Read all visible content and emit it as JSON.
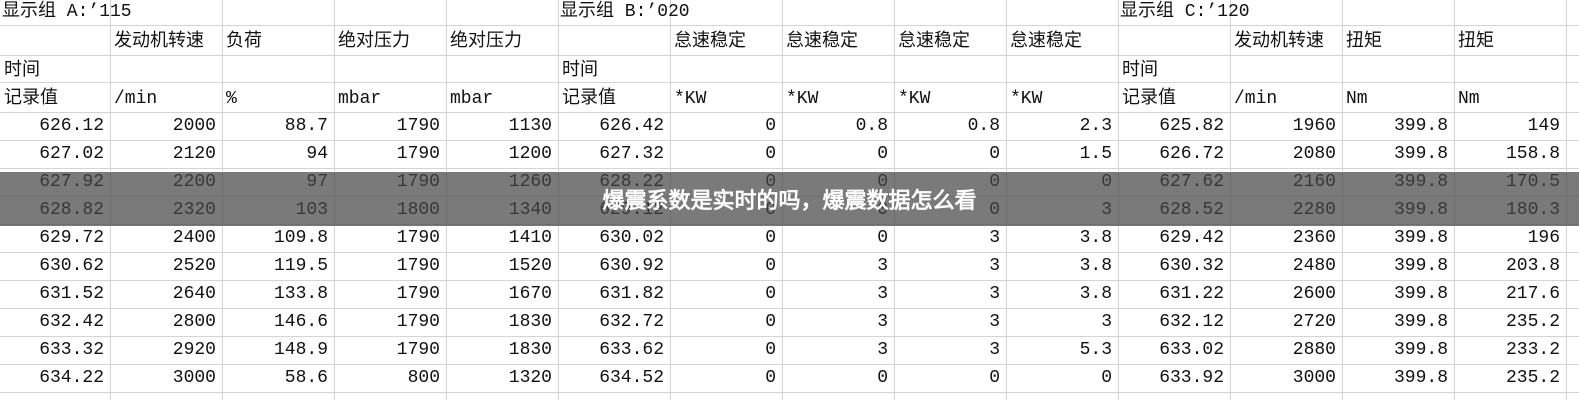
{
  "table": {
    "group_row": [
      [
        "显示组 A:’115",
        0
      ],
      [
        "显示组 B:’020",
        5
      ],
      [
        "显示组 C:’120",
        10
      ]
    ],
    "header_rows": [
      [
        null,
        "发动机转速",
        "负荷",
        "绝对压力",
        "绝对压力",
        null,
        "怠速稳定",
        "怠速稳定",
        "怠速稳定",
        "怠速稳定",
        null,
        "发动机转速",
        "扭矩",
        "扭矩"
      ],
      [
        "时间",
        null,
        null,
        null,
        null,
        "时间",
        null,
        null,
        null,
        null,
        "时间",
        null,
        null,
        null
      ],
      [
        "记录值",
        "/min",
        "%",
        "mbar",
        "mbar",
        "记录值",
        "*KW",
        "*KW",
        "*KW",
        "*KW",
        "记录值",
        "/min",
        "Nm",
        "Nm"
      ]
    ],
    "rows": [
      [
        626.12,
        2000,
        88.7,
        1790,
        1130,
        626.42,
        0,
        0.8,
        0.8,
        2.3,
        625.82,
        1960,
        399.8,
        149
      ],
      [
        627.02,
        2120,
        94,
        1790,
        1200,
        627.32,
        0,
        0,
        0,
        1.5,
        626.72,
        2080,
        399.8,
        158.8
      ],
      [
        627.92,
        2200,
        97,
        1790,
        1260,
        628.22,
        0,
        0,
        0,
        0,
        627.62,
        2160,
        399.8,
        170.5
      ],
      [
        628.82,
        2320,
        103,
        1800,
        1340,
        629.12,
        0,
        0,
        0,
        3,
        628.52,
        2280,
        399.8,
        180.3
      ],
      [
        629.72,
        2400,
        109.8,
        1790,
        1410,
        630.02,
        0,
        0,
        3,
        3.8,
        629.42,
        2360,
        399.8,
        196
      ],
      [
        630.62,
        2520,
        119.5,
        1790,
        1520,
        630.92,
        0,
        3,
        3,
        3.8,
        630.32,
        2480,
        399.8,
        203.8
      ],
      [
        631.52,
        2640,
        133.8,
        1790,
        1670,
        631.82,
        0,
        3,
        3,
        3.8,
        631.22,
        2600,
        399.8,
        217.6
      ],
      [
        632.42,
        2800,
        146.6,
        1790,
        1830,
        632.72,
        0,
        3,
        3,
        3,
        632.12,
        2720,
        399.8,
        235.2
      ],
      [
        633.32,
        2920,
        148.9,
        1790,
        1830,
        633.62,
        0,
        3,
        3,
        5.3,
        633.02,
        2880,
        399.8,
        233.2
      ],
      [
        634.22,
        3000,
        58.6,
        800,
        1320,
        634.52,
        0,
        0,
        0,
        0,
        633.92,
        3000,
        399.8,
        235.2
      ]
    ]
  },
  "banner": {
    "title": "爆震系数是实时的吗，爆震数据怎么看"
  }
}
